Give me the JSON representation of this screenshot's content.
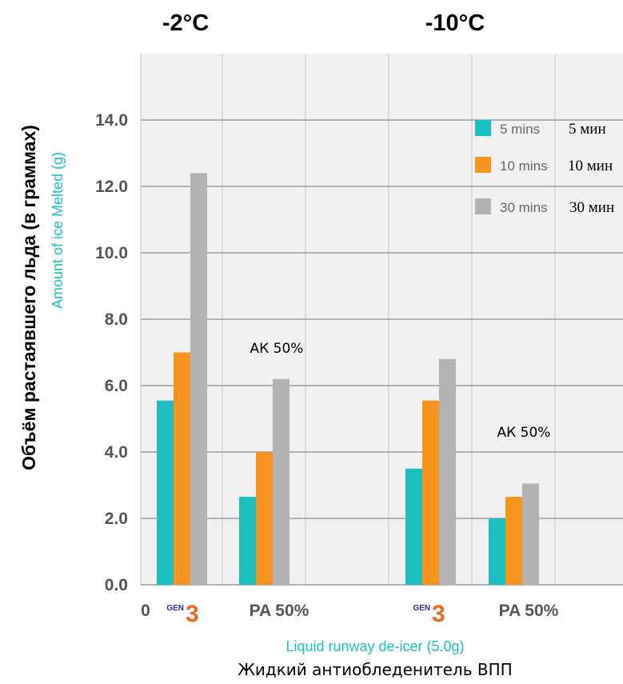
{
  "chart_data": {
    "type": "bar",
    "panel_titles": [
      "-2°C",
      "-10°C"
    ],
    "ylabel_ru": "Объём растаявшего льда (в граммах)",
    "ylabel_en": "Amount of ice Melted (g)",
    "xlabel_en": "Liquid runway de-icer (5.0g)",
    "xlabel_ru": "Жидкий антиобледенитель ВПП",
    "y_ticks": [
      "0.0",
      "2.0",
      "4.0",
      "6.0",
      "8.0",
      "10.0",
      "12.0",
      "14.0"
    ],
    "ylim": [
      0,
      15.5
    ],
    "x_origin_label": "0",
    "categories": [
      "GEN 3",
      "PA 50%",
      "GEN 3",
      "PA 50%"
    ],
    "gen_badge": {
      "prefix": "GEN",
      "number": "3"
    },
    "series": [
      {
        "name": "5 mins",
        "name_ru": "5 мин",
        "color": "#1bbfbf",
        "values": [
          5.55,
          2.65,
          3.5,
          2.0
        ]
      },
      {
        "name": "10 mins",
        "name_ru": "10 мин",
        "color": "#f7941d",
        "values": [
          7.0,
          4.0,
          5.55,
          2.65
        ]
      },
      {
        "name": "30 mins",
        "name_ru": "30 мин",
        "color": "#b3b3b3",
        "values": [
          12.4,
          6.2,
          6.8,
          3.05
        ]
      }
    ],
    "annotations": [
      "АК 50%",
      "АК 50%"
    ],
    "legend_position": "top-right",
    "grid": true
  }
}
